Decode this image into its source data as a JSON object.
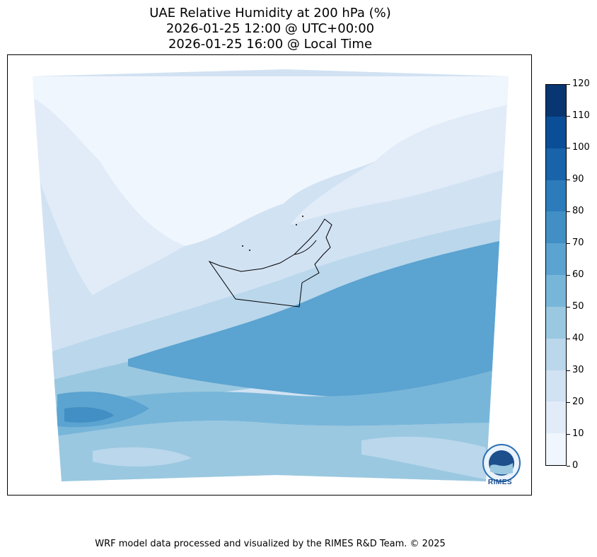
{
  "title": {
    "line1": "UAE Relative Humidity at 200 hPa (%)",
    "line2": "2026-01-25 12:00 @ UTC+00:00",
    "line3": "2026-01-25 16:00 @ Local Time"
  },
  "colorbar": {
    "ticks": [
      "0",
      "10",
      "20",
      "30",
      "40",
      "50",
      "60",
      "70",
      "80",
      "90",
      "100",
      "110",
      "120"
    ],
    "levels": [
      {
        "range": [
          0,
          10
        ],
        "color": "#f0f6fd"
      },
      {
        "range": [
          10,
          20
        ],
        "color": "#e1ecf8"
      },
      {
        "range": [
          20,
          30
        ],
        "color": "#d1e2f3"
      },
      {
        "range": [
          30,
          40
        ],
        "color": "#bad7ec"
      },
      {
        "range": [
          40,
          50
        ],
        "color": "#9ac8e0"
      },
      {
        "range": [
          50,
          60
        ],
        "color": "#78b6d9"
      },
      {
        "range": [
          60,
          70
        ],
        "color": "#5ba3d0"
      },
      {
        "range": [
          70,
          80
        ],
        "color": "#418fc4"
      },
      {
        "range": [
          80,
          90
        ],
        "color": "#2c7bba"
      },
      {
        "range": [
          90,
          100
        ],
        "color": "#1863aa"
      },
      {
        "range": [
          100,
          110
        ],
        "color": "#0a4e97"
      },
      {
        "range": [
          110,
          120
        ],
        "color": "#083672"
      }
    ]
  },
  "footer": "WRF model data processed and visualized by the RIMES R&D Team. © 2025",
  "logo": {
    "text": "RIMES",
    "icon": "rimes-logo-icon"
  }
}
